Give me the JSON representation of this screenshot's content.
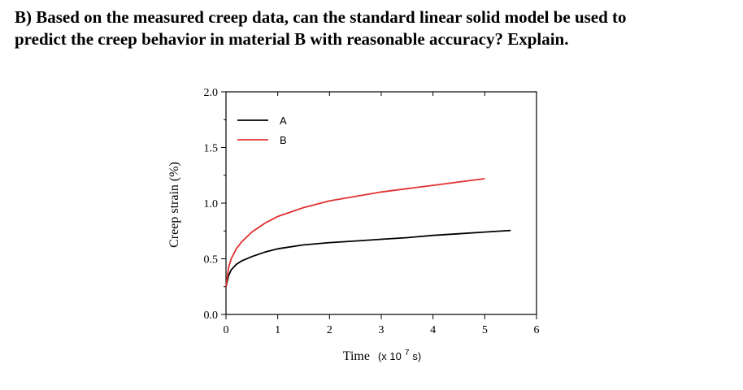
{
  "question": {
    "line1": "B) Based on the measured creep data, can the standard linear solid model be used to",
    "line2": "predict the creep behavior in material B with reasonable accuracy? Explain."
  },
  "chart_data": {
    "type": "line",
    "xlabel_main": "Time",
    "xlabel_unit": "(x 10",
    "xlabel_exp": "7",
    "xlabel_unit_end": " s)",
    "ylabel": "Creep strain (%)",
    "xlim": [
      0,
      6
    ],
    "ylim": [
      0,
      2.0
    ],
    "x_ticks": [
      "0",
      "1",
      "2",
      "3",
      "4",
      "5",
      "6"
    ],
    "y_ticks": [
      "0.0",
      "0.5",
      "1.0",
      "1.5",
      "2.0"
    ],
    "legend_position": "top-left",
    "grid": false,
    "series": [
      {
        "name": "A",
        "color": "#000000",
        "x": [
          0,
          0.05,
          0.1,
          0.2,
          0.3,
          0.5,
          0.75,
          1.0,
          1.5,
          2.0,
          2.5,
          3.0,
          3.5,
          4.0,
          4.5,
          5.0,
          5.5
        ],
        "y": [
          0.25,
          0.35,
          0.4,
          0.45,
          0.48,
          0.52,
          0.56,
          0.59,
          0.625,
          0.645,
          0.66,
          0.675,
          0.69,
          0.71,
          0.725,
          0.74,
          0.755
        ]
      },
      {
        "name": "B",
        "color": "#e03030",
        "x": [
          0,
          0.05,
          0.1,
          0.2,
          0.3,
          0.5,
          0.75,
          1.0,
          1.5,
          2.0,
          2.5,
          3.0,
          3.5,
          4.0,
          4.5,
          5.0
        ],
        "y": [
          0.25,
          0.42,
          0.5,
          0.59,
          0.65,
          0.74,
          0.82,
          0.88,
          0.96,
          1.02,
          1.06,
          1.1,
          1.13,
          1.16,
          1.19,
          1.22
        ]
      }
    ]
  }
}
